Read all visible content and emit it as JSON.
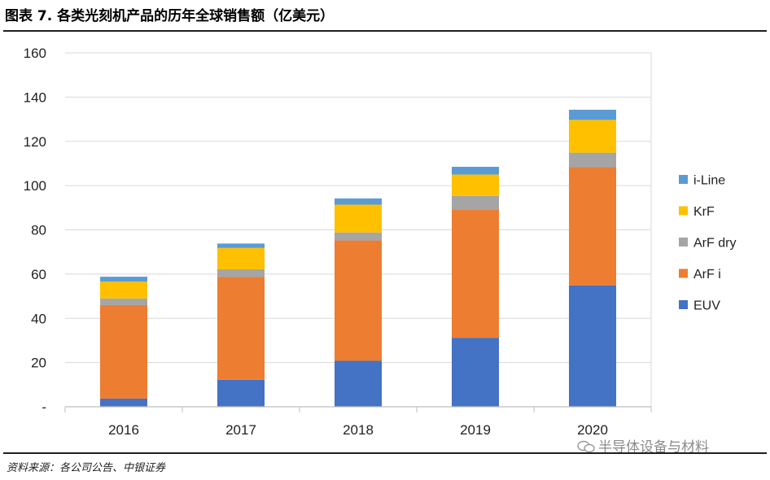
{
  "figure": {
    "title": "图表 7. 各类光刻机产品的历年全球销售额（亿美元）",
    "source": "资料来源：各公司公告、中银证券",
    "watermark": "半导体设备与材料"
  },
  "chart_data": {
    "type": "bar",
    "stacked": true,
    "categories": [
      "2016",
      "2017",
      "2018",
      "2019",
      "2020"
    ],
    "series": [
      {
        "name": "EUV",
        "color": "#4472C4",
        "values": [
          3.7,
          12.2,
          20.8,
          31.2,
          54.9
        ]
      },
      {
        "name": "ArF i",
        "color": "#ED7D31",
        "values": [
          42.3,
          46.5,
          54.4,
          57.8,
          53.4
        ]
      },
      {
        "name": "ArF dry",
        "color": "#A5A5A5",
        "values": [
          3.0,
          3.5,
          3.6,
          6.3,
          6.6
        ]
      },
      {
        "name": "KrF",
        "color": "#FFC000",
        "values": [
          7.6,
          9.6,
          12.6,
          9.7,
          14.8
        ]
      },
      {
        "name": "i-Line",
        "color": "#5B9BD5",
        "values": [
          2.2,
          2.0,
          2.8,
          3.5,
          4.6
        ]
      }
    ],
    "y_ticks": [
      "-",
      "20",
      "40",
      "60",
      "80",
      "100",
      "120",
      "140",
      "160"
    ],
    "ylim": [
      0,
      160
    ],
    "grid": true,
    "legend_position": "right",
    "xlabel": "",
    "ylabel": ""
  }
}
